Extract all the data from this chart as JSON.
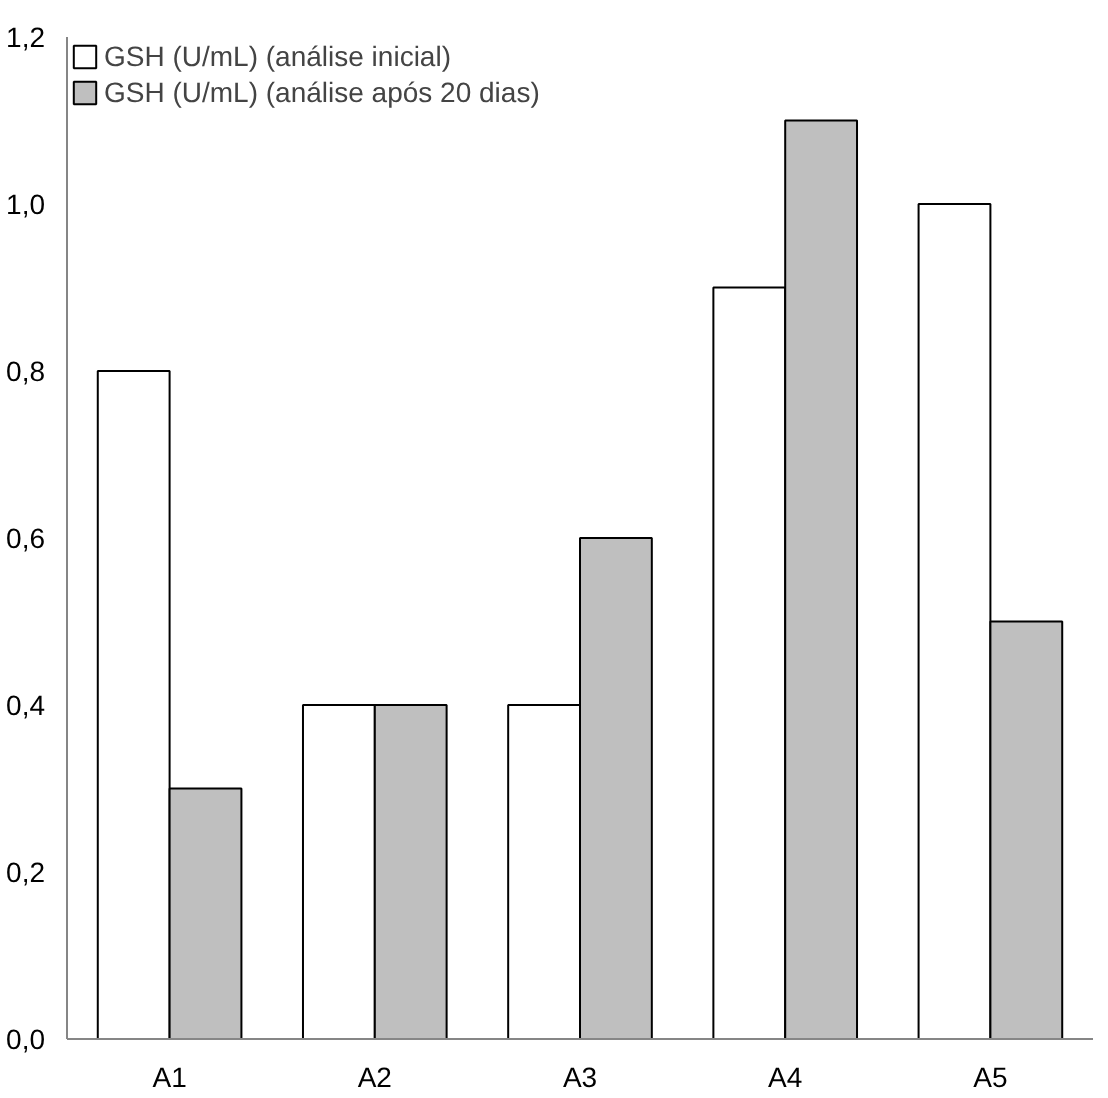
{
  "chart_data": {
    "type": "bar",
    "categories": [
      "A1",
      "A2",
      "A3",
      "A4",
      "A5"
    ],
    "series": [
      {
        "name": "GSH (U/mL) (análise inicial)",
        "color": "#ffffff",
        "values": [
          0.8,
          0.4,
          0.4,
          0.9,
          1.0
        ]
      },
      {
        "name": "GSH (U/mL) (análise após 20 dias)",
        "color": "#bfbfbf",
        "values": [
          0.3,
          0.4,
          0.6,
          1.1,
          0.5
        ]
      }
    ],
    "ylim": [
      0,
      1.2
    ],
    "yticks": [
      {
        "value": 0,
        "label": "0,0"
      },
      {
        "value": 0.2,
        "label": "0,2"
      },
      {
        "value": 0.4,
        "label": "0,4"
      },
      {
        "value": 0.6,
        "label": "0,6"
      },
      {
        "value": 0.8,
        "label": "0,8"
      },
      {
        "value": 1.0,
        "label": "1,0"
      },
      {
        "value": 1.2,
        "label": "1,2"
      }
    ],
    "grid": false,
    "legend": "top left"
  }
}
